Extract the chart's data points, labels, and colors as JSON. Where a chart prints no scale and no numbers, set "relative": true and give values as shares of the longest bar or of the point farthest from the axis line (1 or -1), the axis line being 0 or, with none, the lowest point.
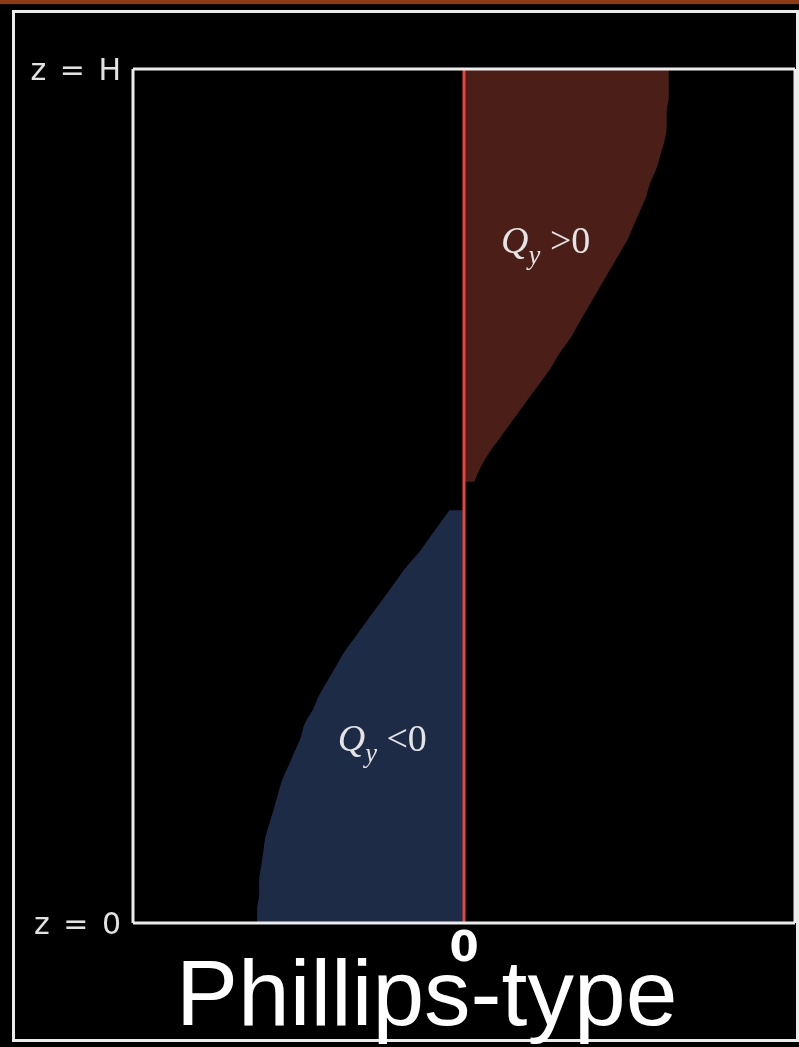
{
  "chart_data": {
    "type": "area",
    "orientation": "horizontal",
    "relative": true,
    "title": "Phillips-type",
    "categories": [
      "z = H",
      null,
      null,
      null,
      null,
      null,
      null,
      null,
      null,
      null,
      null,
      null,
      null,
      null,
      null,
      null,
      null,
      null,
      null,
      null,
      null,
      null,
      null,
      null,
      null,
      null,
      null,
      null,
      null,
      null,
      null,
      null,
      null,
      null,
      null,
      null,
      null,
      null,
      null,
      null,
      null,
      null,
      null,
      null,
      null,
      null,
      null,
      null,
      null,
      null,
      null,
      null,
      null,
      null,
      null,
      null,
      null,
      null,
      null,
      null,
      "z = 0"
    ],
    "series": [
      {
        "name": "Q$_{y}$ >0",
        "color": "#4b1e18",
        "values": [
          0.99,
          0.99,
          0.99,
          0.98,
          0.98,
          0.97,
          0.95,
          0.93,
          0.9,
          0.88,
          0.85,
          0.82,
          0.79,
          0.75,
          0.71,
          0.67,
          0.63,
          0.59,
          0.55,
          0.51,
          0.46,
          0.42,
          0.37,
          0.32,
          0.27,
          0.22,
          0.17,
          0.12,
          0.08,
          0.05,
          null,
          null,
          null,
          null,
          null,
          null,
          null,
          null,
          null,
          null,
          null,
          null,
          null,
          null,
          null,
          null,
          null,
          null,
          null,
          null,
          null,
          null,
          null,
          null,
          null,
          null,
          null,
          null,
          null,
          null,
          null
        ]
      },
      {
        "name": "Q$_{y}$ <0",
        "color": "#1e2b47",
        "values": [
          null,
          null,
          null,
          null,
          null,
          null,
          null,
          null,
          null,
          null,
          null,
          null,
          null,
          null,
          null,
          null,
          null,
          null,
          null,
          null,
          null,
          null,
          null,
          null,
          null,
          null,
          null,
          null,
          null,
          null,
          null,
          -0.07,
          -0.12,
          -0.17,
          -0.22,
          -0.28,
          -0.33,
          -0.38,
          -0.43,
          -0.48,
          -0.53,
          -0.58,
          -0.62,
          -0.66,
          -0.7,
          -0.73,
          -0.77,
          -0.79,
          -0.82,
          -0.85,
          -0.88,
          -0.9,
          -0.92,
          -0.94,
          -0.96,
          -0.97,
          -0.98,
          -0.99,
          -0.99,
          -1,
          -1
        ]
      }
    ],
    "ref_lines": [
      {
        "axis": "x",
        "value": 0,
        "label": "0",
        "color": "#e5453c"
      }
    ]
  }
}
